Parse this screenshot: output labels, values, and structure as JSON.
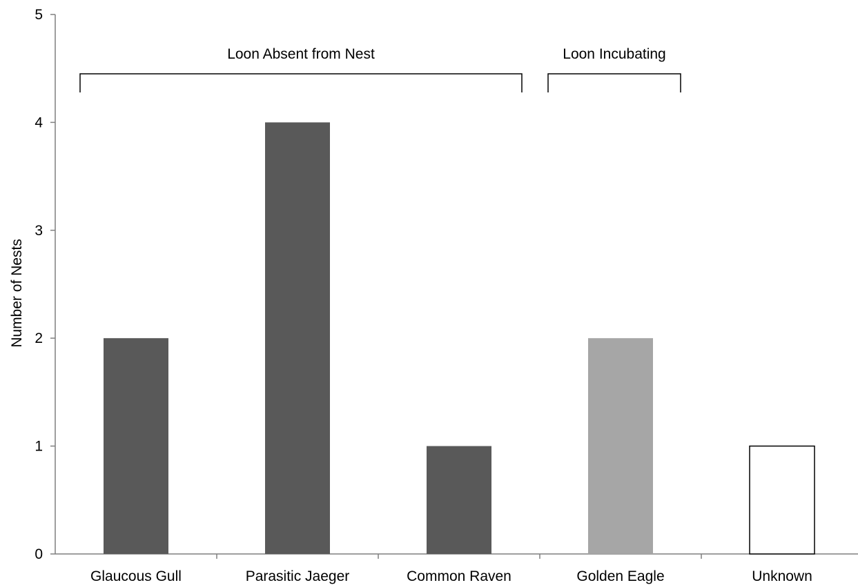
{
  "chart_data": {
    "type": "bar",
    "title": "",
    "xlabel": "",
    "ylabel": "Number of Nests",
    "ylim": [
      0,
      5
    ],
    "yticks": [
      "0",
      "1",
      "2",
      "3",
      "4",
      "5"
    ],
    "categories": [
      "Glaucous Gull",
      "Parasitic Jaeger",
      "Common Raven",
      "Golden Eagle",
      "Unknown"
    ],
    "values": [
      2,
      4,
      1,
      2,
      1
    ],
    "bar_colors": [
      "#595959",
      "#595959",
      "#595959",
      "#a6a6a6",
      "#ffffff"
    ],
    "grid": false,
    "legend": "none",
    "annotations": [
      {
        "text": "Loon Absent from Nest",
        "spans_categories": [
          "Glaucous Gull",
          "Parasitic Jaeger",
          "Common Raven"
        ]
      },
      {
        "text": "Loon Incubating",
        "spans_categories": [
          "Golden Eagle"
        ]
      }
    ]
  }
}
